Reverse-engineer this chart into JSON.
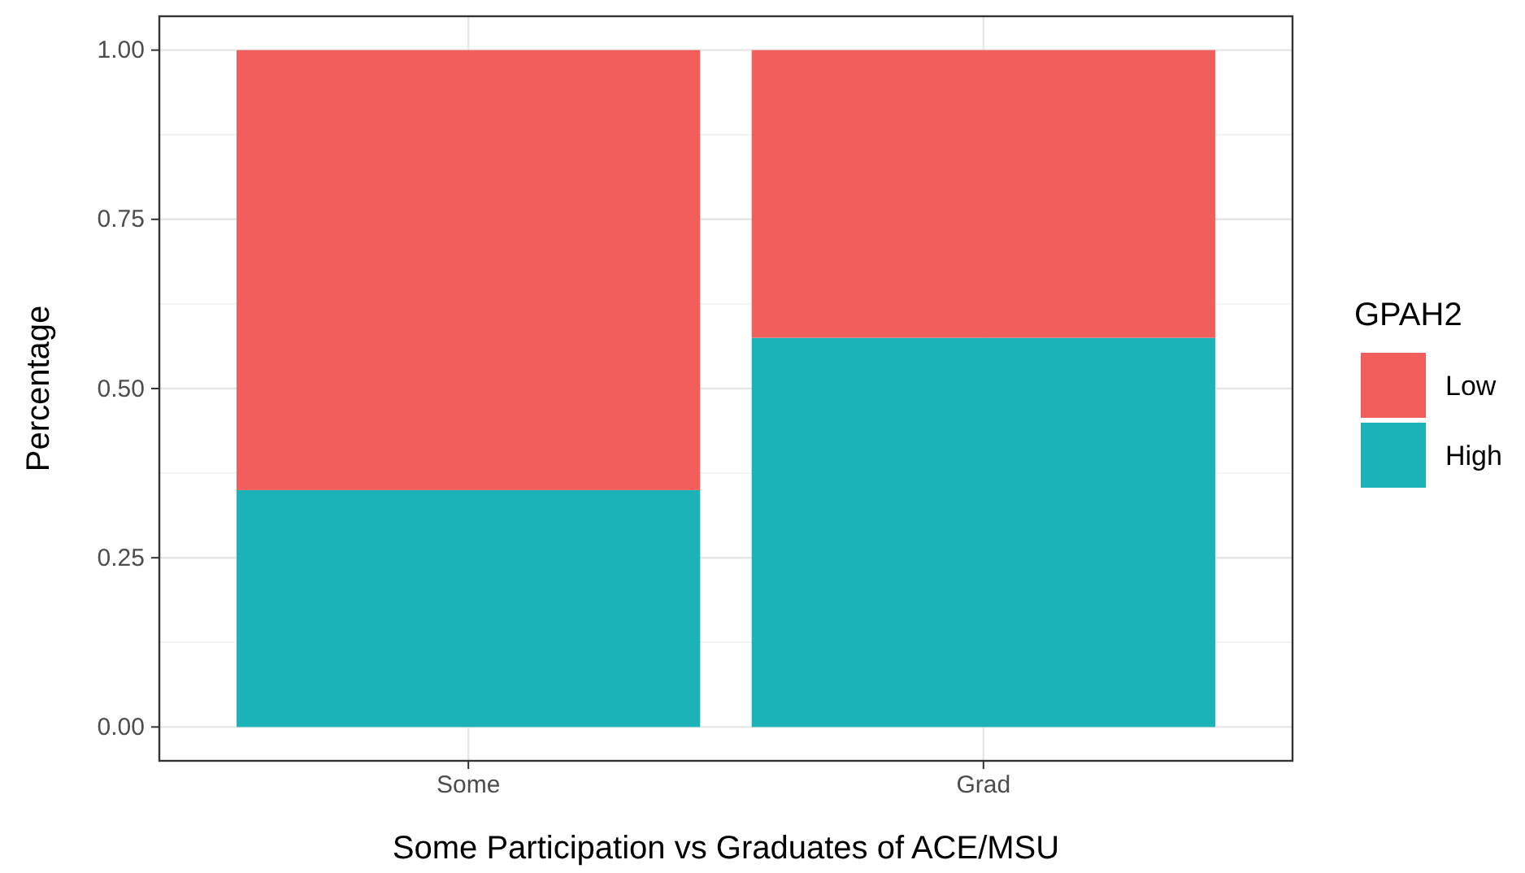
{
  "chart_data": {
    "type": "bar",
    "stacked": true,
    "categories": [
      "Some",
      "Grad"
    ],
    "series": [
      {
        "name": "High",
        "color": "#1bb3b8",
        "values": [
          0.35,
          0.575
        ]
      },
      {
        "name": "Low",
        "color": "#f25e5b",
        "values": [
          0.65,
          0.425
        ]
      }
    ],
    "xlabel": "Some Participation vs Graduates of ACE/MSU",
    "ylabel": "Percentage",
    "legend_title": "GPAH2",
    "ylim": [
      -0.05,
      1.05
    ],
    "yticks": [
      {
        "value": 0,
        "label": "0.00"
      },
      {
        "value": 0.25,
        "label": "0.25"
      },
      {
        "value": 0.5,
        "label": "0.50"
      },
      {
        "value": 0.75,
        "label": "0.75"
      },
      {
        "value": 1,
        "label": "1.00"
      }
    ],
    "grid": true,
    "legend": "right"
  }
}
